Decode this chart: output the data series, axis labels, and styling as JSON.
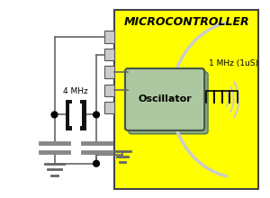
{
  "bg_color": "#ffffff",
  "mc_bg": "#ffff00",
  "mc_border": "#444444",
  "mc_title": "MICROCONTROLLER",
  "mc_title_fontsize": 9,
  "osc_bg": "#adc8a0",
  "osc_shadow_bg": "#8aaa80",
  "osc_label": "Oscillator",
  "osc_label_fontsize": 8,
  "freq_label": "1 MHz (1uS)",
  "freq_fontsize": 6.5,
  "crystal_label": "4 MHz",
  "crystal_fontsize": 6.5,
  "wire_color": "#666666",
  "dot_color": "#000000",
  "ground_color": "#666666",
  "cap_color": "#888888",
  "pulse_color": "#000000",
  "arc_color": "#cccccc",
  "pin_color": "#cccccc",
  "pin_border": "#555555",
  "xtal_bar_color": "#111111",
  "xtal_rect_color": "#ffffff"
}
